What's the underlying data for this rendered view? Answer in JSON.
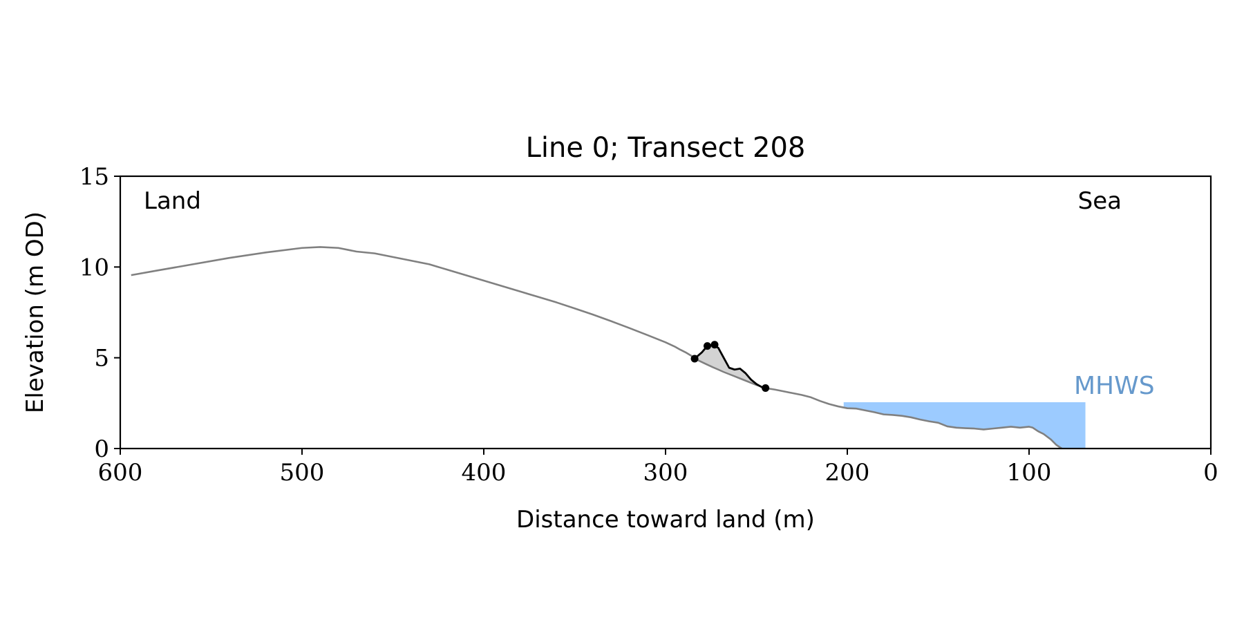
{
  "chart_data": {
    "type": "line",
    "title": "Line 0; Transect 208",
    "xlabel": "Distance toward land (m)",
    "ylabel": "Elevation (m OD)",
    "xlim": [
      600,
      0
    ],
    "ylim": [
      0,
      15
    ],
    "x_ticks": [
      600,
      500,
      400,
      300,
      200,
      100,
      0
    ],
    "x_tick_labels": [
      "600",
      "500",
      "400",
      "300",
      "200",
      "100",
      "0"
    ],
    "y_ticks": [
      0,
      5,
      10,
      15
    ],
    "y_tick_labels": [
      "0",
      "5",
      "10",
      "15"
    ],
    "grid": false,
    "annotations": {
      "land": "Land",
      "sea": "Sea",
      "mhws": "MHWS"
    },
    "colors": {
      "profile": "#808080",
      "dune": "#000000",
      "dune_fill": "#d3d3d3",
      "sea_fill": "#9ccbff",
      "mhws_text": "#6699cc"
    },
    "mhws": {
      "level": 2.55,
      "x_start": 202,
      "x_end": 69
    },
    "profile": {
      "x": [
        594,
        580,
        560,
        540,
        520,
        500,
        490,
        480,
        470,
        460,
        450,
        440,
        430,
        420,
        410,
        400,
        390,
        380,
        370,
        360,
        350,
        340,
        330,
        320,
        310,
        300,
        295,
        292,
        289,
        286,
        284,
        280,
        277,
        274,
        271,
        268,
        265,
        262,
        259,
        256,
        253,
        250,
        247,
        245,
        240,
        235,
        230,
        225,
        220,
        215,
        210,
        205,
        200,
        195,
        190,
        185,
        180,
        175,
        170,
        165,
        160,
        155,
        150,
        145,
        140,
        135,
        130,
        125,
        120,
        115,
        110,
        105,
        100,
        98,
        95,
        92,
        88,
        85,
        82
      ],
      "y": [
        9.55,
        9.8,
        10.15,
        10.5,
        10.8,
        11.05,
        11.1,
        11.05,
        10.85,
        10.75,
        10.55,
        10.35,
        10.15,
        9.85,
        9.55,
        9.25,
        8.95,
        8.65,
        8.35,
        8.05,
        7.72,
        7.38,
        7.02,
        6.64,
        6.25,
        5.85,
        5.62,
        5.45,
        5.3,
        5.12,
        4.95,
        4.76,
        4.62,
        4.48,
        4.35,
        4.22,
        4.1,
        3.98,
        3.86,
        3.74,
        3.62,
        3.5,
        3.4,
        3.33,
        3.25,
        3.15,
        3.05,
        2.95,
        2.82,
        2.62,
        2.45,
        2.32,
        2.22,
        2.2,
        2.1,
        2.0,
        1.88,
        1.85,
        1.8,
        1.72,
        1.6,
        1.5,
        1.42,
        1.22,
        1.15,
        1.12,
        1.1,
        1.05,
        1.1,
        1.15,
        1.2,
        1.15,
        1.2,
        1.15,
        0.95,
        0.8,
        0.5,
        0.2,
        0.0
      ]
    },
    "dune": {
      "x": [
        284,
        280,
        277,
        274,
        271,
        268,
        265,
        262,
        259,
        256,
        253,
        250,
        247,
        245
      ],
      "y": [
        4.95,
        5.3,
        5.65,
        5.7,
        5.55,
        5.0,
        4.45,
        4.35,
        4.4,
        4.15,
        3.8,
        3.55,
        3.38,
        3.33
      ]
    },
    "dune_points": {
      "x": [
        284,
        277,
        273,
        245
      ],
      "y": [
        4.95,
        5.65,
        5.72,
        3.33
      ]
    }
  }
}
